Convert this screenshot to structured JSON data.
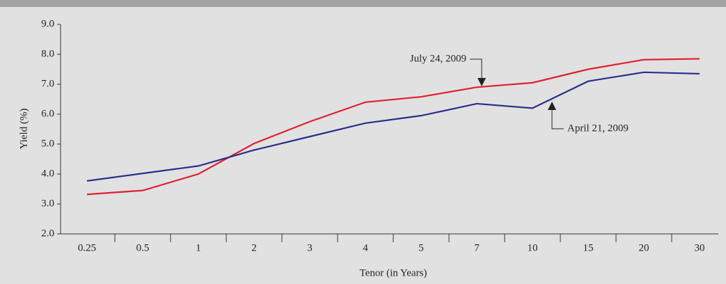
{
  "chart_data": {
    "type": "line",
    "y_label": "Yield (%)",
    "x_label": "Tenor (in Years)",
    "categories": [
      "0.25",
      "0.5",
      "1",
      "2",
      "3",
      "4",
      "5",
      "7",
      "10",
      "15",
      "20",
      "30"
    ],
    "series": [
      {
        "name": "July 24, 2009",
        "color": "#e0202e",
        "values": [
          3.32,
          3.45,
          4.0,
          5.02,
          5.75,
          6.4,
          6.58,
          6.9,
          7.05,
          7.5,
          7.82,
          7.85
        ]
      },
      {
        "name": "April 21, 2009",
        "color": "#2b2d8e",
        "values": [
          3.77,
          4.02,
          4.27,
          4.8,
          5.25,
          5.7,
          5.95,
          6.35,
          6.2,
          7.1,
          7.4,
          7.35
        ]
      }
    ],
    "ylim": [
      2,
      9
    ],
    "yticks": [
      {
        "value": 2,
        "label": "2.0"
      },
      {
        "value": 3,
        "label": "3.0"
      },
      {
        "value": 4,
        "label": "4.0"
      },
      {
        "value": 5,
        "label": "5.0"
      },
      {
        "value": 6,
        "label": "6.0"
      },
      {
        "value": 7,
        "label": "7.0"
      },
      {
        "value": 8,
        "label": "8.0"
      },
      {
        "value": 9,
        "label": "9.0"
      }
    ],
    "grid": false
  }
}
